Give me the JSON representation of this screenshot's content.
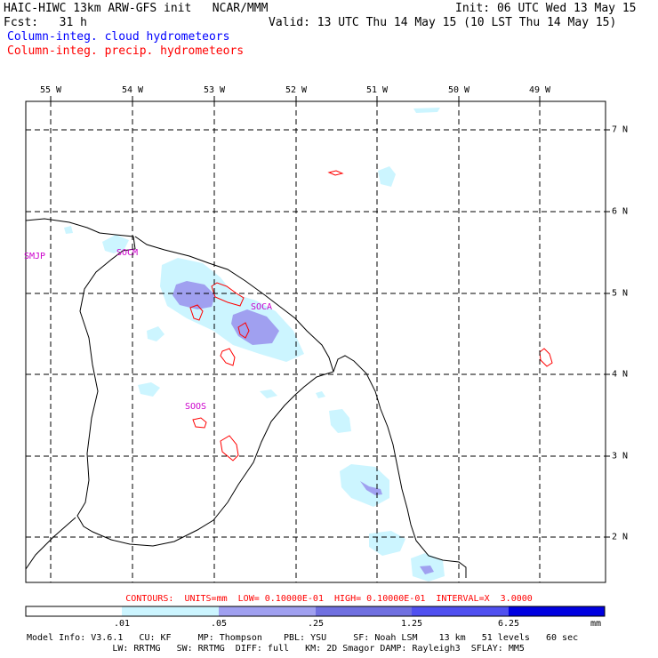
{
  "header": {
    "line1_left": "HAIC-HIWC 13km ARW-GFS init   NCAR/MMM",
    "line1_right": "Init: 06 UTC Wed 13 May 15",
    "line2_left": "Fcst:   31 h",
    "line2_right": "Valid: 13 UTC Thu 14 May 15 (10 LST Thu 14 May 15)",
    "legend_cloud": "Column-integ. cloud hydrometeors",
    "legend_precip": "Column-integ. precip. hydrometeors"
  },
  "map": {
    "lon_labels": [
      "55 W",
      "54 W",
      "53 W",
      "52 W",
      "51 W",
      "50 W",
      "49 W"
    ],
    "lat_labels": [
      "7 N",
      "6 N",
      "5 N",
      "4 N",
      "3 N",
      "2 N"
    ],
    "stations": [
      {
        "id": "SMJP",
        "label": "SMJP"
      },
      {
        "id": "SOCM",
        "label": "SOCM"
      },
      {
        "id": "SOCA",
        "label": "SOCA"
      },
      {
        "id": "SOOS",
        "label": "SOOS"
      }
    ],
    "colors": {
      "cloud_light": "#ccf5ff",
      "cloud_mid": "#a0a0f0",
      "cloud_dark": "#7070e0",
      "precip": "#ff0000",
      "coast": "#000000",
      "grid": "#000000"
    }
  },
  "footer": {
    "contours": "CONTOURS:  UNITS=mm  LOW= 0.10000E-01  HIGH= 0.10000E-01  INTERVAL=X  3.0000",
    "colorbar_labels": [
      ".01",
      ".05",
      ".25",
      "1.25",
      "6.25"
    ],
    "colorbar_colors": [
      "#ffffff",
      "#ccf5ff",
      "#a0a0f0",
      "#7070e0",
      "#5050f0",
      "#0000e0"
    ],
    "units": "mm",
    "model_line1": "Model Info: V3.6.1   CU: KF     MP: Thompson    PBL: YSU     SF: Noah LSM    13 km   51 levels   60 sec",
    "model_line2": "                LW: RRTMG   SW: RRTMG  DIFF: full   KM: 2D Smagor DAMP: Rayleigh3  SFLAY: MM5"
  }
}
